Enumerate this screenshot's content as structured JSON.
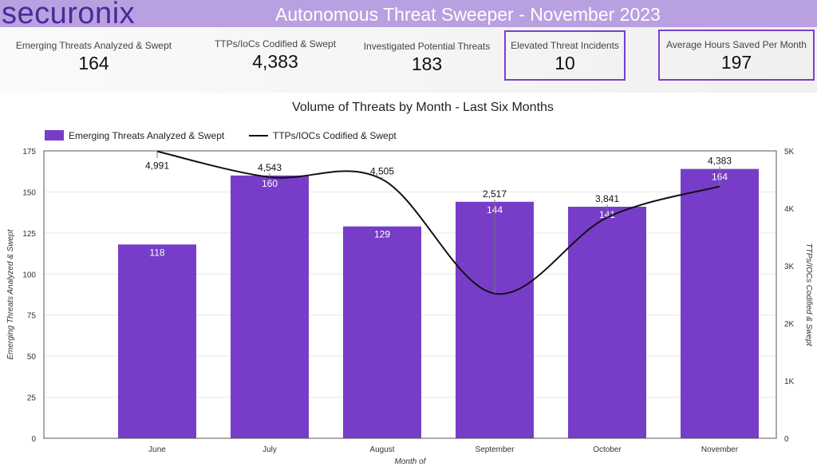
{
  "header": {
    "logo": "securonix",
    "title": "Autonomous Threat Sweeper - November 2023"
  },
  "kpis": [
    {
      "label": "Emerging Threats Analyzed & Swept",
      "value": "164"
    },
    {
      "label": "TTPs/IoCs Codified & Swept",
      "value": "4,383"
    },
    {
      "label": "Investigated Potential Threats",
      "value": "183"
    },
    {
      "label": "Elevated Threat Incidents",
      "value": "10"
    },
    {
      "label": "Average Hours Saved Per Month",
      "value": "197"
    }
  ],
  "chart_data": {
    "type": "bar",
    "title": "Volume of Threats by Month - Last Six Months",
    "categories": [
      "June",
      "July",
      "August",
      "September",
      "October",
      "November"
    ],
    "xlabel": "Month of",
    "ylabel": "Emerging Threats Analyzed & Swept",
    "y2label": "TTPs/IOCs Codified & Swept",
    "ylim": [
      0,
      175
    ],
    "y2lim": [
      0,
      5000
    ],
    "yticks": [
      "0",
      "25",
      "50",
      "75",
      "100",
      "125",
      "150",
      "175"
    ],
    "y2ticks": [
      "0",
      "1K",
      "2K",
      "3K",
      "4K",
      "5K"
    ],
    "legend": "top-left",
    "grid": true,
    "series": [
      {
        "name": "Emerging Threats Analyzed & Swept",
        "type": "bar",
        "axis": "left",
        "color": "#773dc8",
        "values": [
          118,
          160,
          129,
          144,
          141,
          164
        ],
        "labels": [
          "118",
          "160",
          "129",
          "144",
          "141",
          "164"
        ]
      },
      {
        "name": "TTPs/IOCs Codified & Swept",
        "type": "line",
        "axis": "right",
        "color": "#111111",
        "values": [
          4991,
          4543,
          4505,
          2517,
          3841,
          4383
        ],
        "labels": [
          "4,991",
          "4,543",
          "4,505",
          "2,517",
          "3,841",
          "4,383"
        ]
      }
    ]
  }
}
